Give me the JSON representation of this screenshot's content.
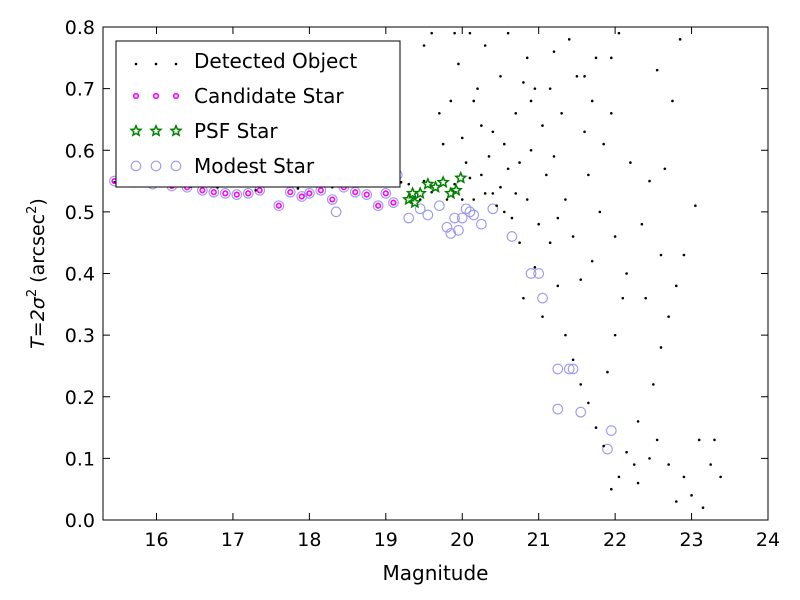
{
  "chart_data": {
    "type": "scatter",
    "xlabel": "Magnitude",
    "ylabel_parts": [
      "T",
      "=",
      "2σ",
      "2",
      " (arcsec",
      "2",
      ")"
    ],
    "xlim": [
      15.3,
      24
    ],
    "ylim": [
      0.0,
      0.8
    ],
    "xticks": [
      "16",
      "17",
      "18",
      "19",
      "20",
      "21",
      "22",
      "23",
      "24"
    ],
    "yticks": [
      "0.0",
      "0.1",
      "0.2",
      "0.3",
      "0.4",
      "0.5",
      "0.6",
      "0.7",
      "0.8"
    ],
    "legend_position": "top-left",
    "series": [
      {
        "name": "Detected Object",
        "marker": "dot",
        "color": "#000000",
        "points": [
          [
            15.45,
            0.548
          ],
          [
            15.7,
            0.548
          ],
          [
            15.95,
            0.546
          ],
          [
            16.2,
            0.543
          ],
          [
            16.45,
            0.541
          ],
          [
            16.65,
            0.546
          ],
          [
            16.8,
            0.54
          ],
          [
            17.05,
            0.542
          ],
          [
            17.3,
            0.535
          ],
          [
            17.6,
            0.542
          ],
          [
            17.85,
            0.538
          ],
          [
            18.05,
            0.545
          ],
          [
            18.3,
            0.54
          ],
          [
            18.55,
            0.545
          ],
          [
            18.8,
            0.542
          ],
          [
            19.0,
            0.545
          ],
          [
            19.1,
            0.56
          ],
          [
            19.2,
            0.548
          ],
          [
            19.3,
            0.545
          ],
          [
            19.45,
            0.52
          ],
          [
            19.5,
            0.55
          ],
          [
            19.6,
            0.532
          ],
          [
            19.8,
            0.52
          ],
          [
            19.9,
            0.545
          ],
          [
            20.0,
            0.52
          ],
          [
            20.05,
            0.58
          ],
          [
            20.1,
            0.555
          ],
          [
            20.15,
            0.52
          ],
          [
            20.25,
            0.56
          ],
          [
            20.3,
            0.53
          ],
          [
            20.35,
            0.59
          ],
          [
            20.4,
            0.53
          ],
          [
            20.45,
            0.51
          ],
          [
            20.5,
            0.54
          ],
          [
            20.55,
            0.5
          ],
          [
            20.6,
            0.57
          ],
          [
            20.65,
            0.49
          ],
          [
            20.7,
            0.53
          ],
          [
            20.75,
            0.45
          ],
          [
            20.8,
            0.36
          ],
          [
            20.85,
            0.52
          ],
          [
            20.9,
            0.6
          ],
          [
            20.95,
            0.41
          ],
          [
            21.0,
            0.48
          ],
          [
            21.05,
            0.33
          ],
          [
            21.1,
            0.56
          ],
          [
            21.15,
            0.45
          ],
          [
            21.25,
            0.38
          ],
          [
            21.35,
            0.3
          ],
          [
            21.45,
            0.26
          ],
          [
            21.55,
            0.22
          ],
          [
            21.65,
            0.19
          ],
          [
            21.75,
            0.15
          ],
          [
            21.85,
            0.12
          ],
          [
            21.95,
            0.05
          ],
          [
            22.05,
            0.07
          ],
          [
            22.15,
            0.11
          ],
          [
            22.25,
            0.09
          ],
          [
            22.3,
            0.06
          ],
          [
            22.45,
            0.1
          ],
          [
            22.55,
            0.13
          ],
          [
            22.7,
            0.09
          ],
          [
            22.8,
            0.03
          ],
          [
            22.9,
            0.07
          ],
          [
            23.0,
            0.04
          ],
          [
            23.1,
            0.13
          ],
          [
            23.15,
            0.02
          ],
          [
            23.25,
            0.09
          ],
          [
            23.3,
            0.13
          ],
          [
            23.38,
            0.07
          ],
          [
            22.3,
            0.16
          ],
          [
            22.5,
            0.22
          ],
          [
            22.6,
            0.28
          ],
          [
            22.7,
            0.33
          ],
          [
            22.8,
            0.38
          ],
          [
            22.9,
            0.43
          ],
          [
            23.05,
            0.51
          ],
          [
            22.65,
            0.57
          ],
          [
            22.75,
            0.68
          ],
          [
            22.85,
            0.78
          ],
          [
            22.55,
            0.73
          ],
          [
            21.9,
            0.24
          ],
          [
            22.0,
            0.3
          ],
          [
            22.1,
            0.36
          ],
          [
            21.7,
            0.42
          ],
          [
            21.8,
            0.5
          ],
          [
            21.6,
            0.63
          ],
          [
            21.5,
            0.72
          ],
          [
            21.4,
            0.78
          ],
          [
            21.3,
            0.66
          ],
          [
            21.2,
            0.59
          ],
          [
            20.95,
            0.7
          ],
          [
            20.85,
            0.75
          ],
          [
            20.7,
            0.66
          ],
          [
            20.6,
            0.79
          ],
          [
            20.5,
            0.72
          ],
          [
            20.4,
            0.63
          ],
          [
            20.3,
            0.77
          ],
          [
            20.2,
            0.7
          ],
          [
            20.1,
            0.79
          ],
          [
            19.95,
            0.74
          ],
          [
            19.85,
            0.68
          ],
          [
            19.75,
            0.61
          ],
          [
            19.6,
            0.79
          ],
          [
            19.5,
            0.77
          ],
          [
            20.0,
            0.62
          ],
          [
            21.15,
            0.7
          ],
          [
            21.75,
            0.75
          ],
          [
            21.95,
            0.66
          ],
          [
            22.2,
            0.58
          ],
          [
            22.35,
            0.48
          ],
          [
            22.45,
            0.55
          ],
          [
            21.25,
            0.49
          ],
          [
            21.55,
            0.39
          ],
          [
            21.65,
            0.56
          ],
          [
            21.85,
            0.61
          ],
          [
            22.0,
            0.46
          ],
          [
            22.15,
            0.4
          ],
          [
            22.4,
            0.36
          ],
          [
            22.6,
            0.43
          ],
          [
            21.35,
            0.52
          ],
          [
            21.45,
            0.46
          ],
          [
            21.05,
            0.64
          ],
          [
            20.75,
            0.58
          ],
          [
            20.55,
            0.61
          ],
          [
            20.25,
            0.64
          ],
          [
            20.15,
            0.68
          ],
          [
            19.7,
            0.66
          ],
          [
            19.9,
            0.79
          ],
          [
            20.9,
            0.68
          ],
          [
            21.6,
            0.72
          ],
          [
            21.95,
            0.75
          ],
          [
            22.05,
            0.79
          ],
          [
            21.7,
            0.68
          ],
          [
            21.2,
            0.76
          ],
          [
            20.8,
            0.71
          ]
        ]
      },
      {
        "name": "Candidate Star",
        "marker": "ring",
        "color": "#ff00ff",
        "points": [
          [
            15.45,
            0.55
          ],
          [
            15.7,
            0.548
          ],
          [
            15.95,
            0.545
          ],
          [
            16.2,
            0.542
          ],
          [
            16.4,
            0.54
          ],
          [
            16.6,
            0.535
          ],
          [
            16.75,
            0.532
          ],
          [
            16.9,
            0.53
          ],
          [
            17.05,
            0.528
          ],
          [
            17.2,
            0.53
          ],
          [
            17.35,
            0.535
          ],
          [
            17.6,
            0.51
          ],
          [
            17.75,
            0.532
          ],
          [
            17.9,
            0.525
          ],
          [
            18.0,
            0.53
          ],
          [
            18.15,
            0.535
          ],
          [
            18.3,
            0.52
          ],
          [
            18.45,
            0.54
          ],
          [
            18.6,
            0.532
          ],
          [
            18.75,
            0.528
          ],
          [
            18.9,
            0.51
          ],
          [
            19.0,
            0.53
          ],
          [
            19.1,
            0.515
          ],
          [
            19.15,
            0.56
          ]
        ]
      },
      {
        "name": "PSF Star",
        "marker": "star",
        "color": "#008000",
        "points": [
          [
            19.3,
            0.52
          ],
          [
            19.38,
            0.515
          ],
          [
            19.45,
            0.53
          ],
          [
            19.55,
            0.545
          ],
          [
            19.65,
            0.54
          ],
          [
            19.75,
            0.548
          ],
          [
            19.85,
            0.53
          ],
          [
            19.92,
            0.535
          ],
          [
            19.98,
            0.555
          ],
          [
            19.35,
            0.53
          ]
        ]
      },
      {
        "name": "Modest Star",
        "marker": "open-circle",
        "color": "#9999ee",
        "points": [
          [
            15.45,
            0.55
          ],
          [
            15.7,
            0.548
          ],
          [
            15.95,
            0.545
          ],
          [
            16.2,
            0.542
          ],
          [
            16.4,
            0.54
          ],
          [
            16.6,
            0.535
          ],
          [
            16.75,
            0.532
          ],
          [
            16.9,
            0.53
          ],
          [
            17.05,
            0.528
          ],
          [
            17.2,
            0.53
          ],
          [
            17.35,
            0.535
          ],
          [
            17.6,
            0.51
          ],
          [
            17.75,
            0.532
          ],
          [
            17.9,
            0.525
          ],
          [
            18.0,
            0.53
          ],
          [
            18.15,
            0.535
          ],
          [
            18.3,
            0.52
          ],
          [
            18.35,
            0.5
          ],
          [
            18.45,
            0.54
          ],
          [
            18.6,
            0.532
          ],
          [
            18.75,
            0.528
          ],
          [
            18.9,
            0.51
          ],
          [
            19.0,
            0.53
          ],
          [
            19.1,
            0.515
          ],
          [
            19.15,
            0.56
          ],
          [
            19.3,
            0.49
          ],
          [
            19.45,
            0.505
          ],
          [
            19.55,
            0.495
          ],
          [
            19.7,
            0.51
          ],
          [
            19.8,
            0.475
          ],
          [
            19.85,
            0.465
          ],
          [
            19.9,
            0.49
          ],
          [
            19.95,
            0.47
          ],
          [
            20.0,
            0.49
          ],
          [
            20.05,
            0.505
          ],
          [
            20.1,
            0.5
          ],
          [
            20.15,
            0.495
          ],
          [
            20.25,
            0.48
          ],
          [
            20.4,
            0.505
          ],
          [
            20.65,
            0.46
          ],
          [
            20.9,
            0.4
          ],
          [
            21.0,
            0.4
          ],
          [
            21.05,
            0.36
          ],
          [
            21.25,
            0.245
          ],
          [
            21.4,
            0.245
          ],
          [
            21.45,
            0.245
          ],
          [
            21.25,
            0.18
          ],
          [
            21.55,
            0.175
          ],
          [
            21.9,
            0.115
          ],
          [
            21.95,
            0.145
          ]
        ]
      }
    ]
  }
}
